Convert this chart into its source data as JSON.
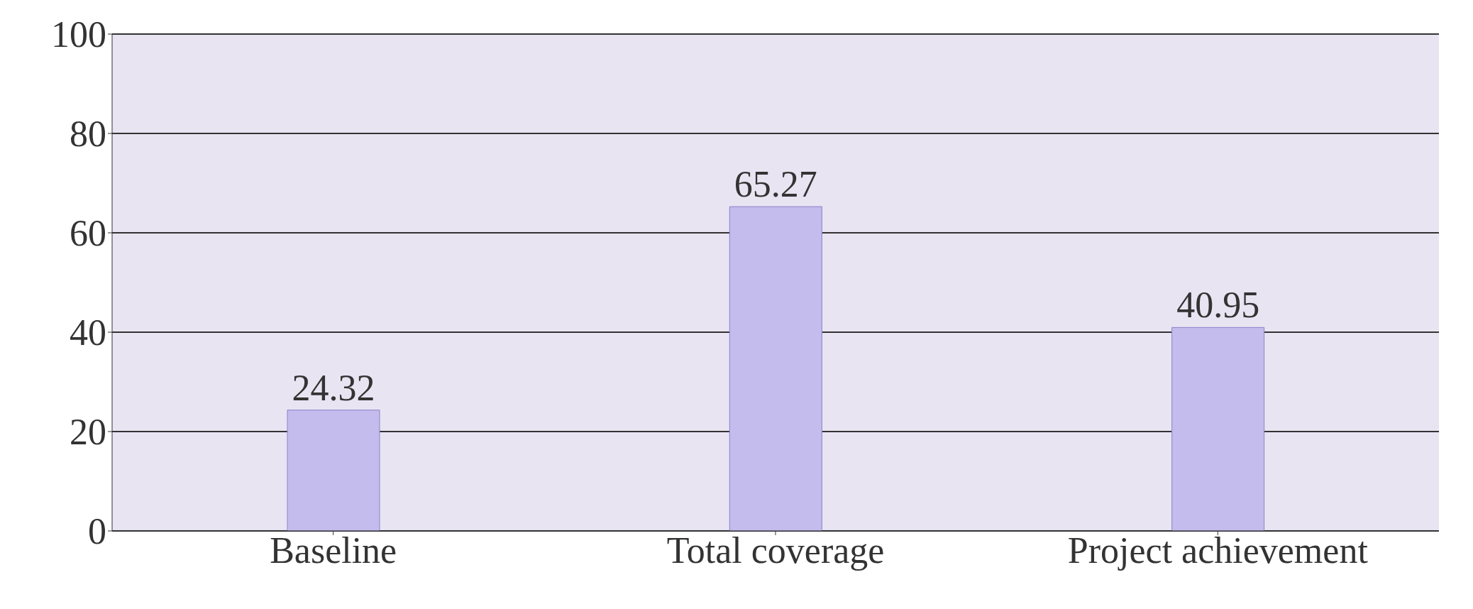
{
  "chart_data": {
    "type": "bar",
    "categories": [
      "Baseline",
      "Total coverage",
      "Project achievement"
    ],
    "values": [
      24.32,
      65.27,
      40.95
    ],
    "color": "#c4bcec",
    "ylim": [
      0,
      100
    ],
    "yticks": [
      0,
      20,
      40,
      60,
      80,
      100
    ],
    "grid": "y",
    "data_labels": true
  }
}
